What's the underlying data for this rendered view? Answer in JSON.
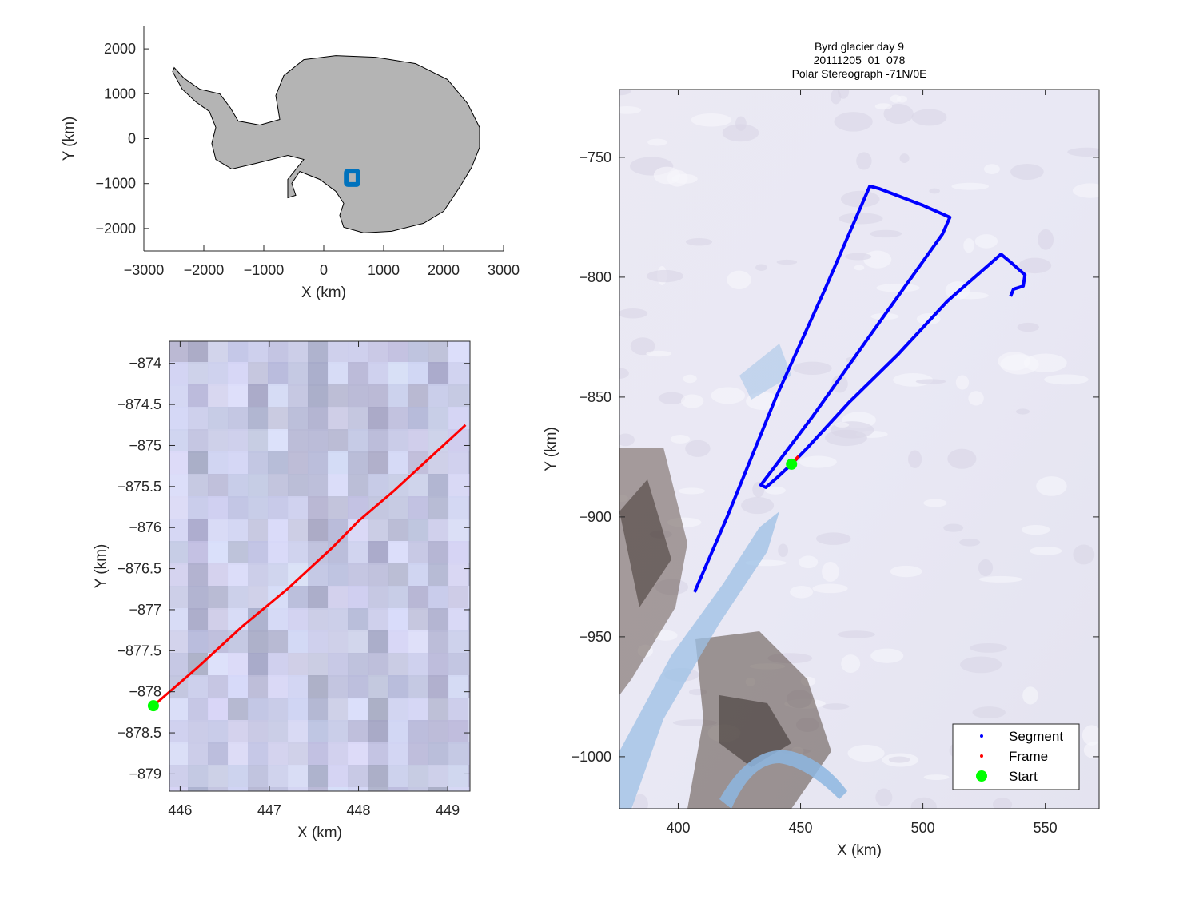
{
  "chart_data": [
    {
      "type": "line",
      "panel": "overview-map",
      "xlabel": "X (km)",
      "ylabel": "Y (km)",
      "xlim": [
        -3000,
        3000
      ],
      "ylim": [
        -2500,
        2500
      ],
      "xticks": [
        -3000,
        -2000,
        -1000,
        0,
        1000,
        2000,
        3000
      ],
      "yticks": [
        -2000,
        -1000,
        0,
        1000,
        2000
      ],
      "box": false,
      "land_color": "#b4b4b4",
      "coastline": [
        [
          -2493,
          1582
        ],
        [
          -2333,
          1351
        ],
        [
          -2067,
          1102
        ],
        [
          -1733,
          996
        ],
        [
          -1560,
          693
        ],
        [
          -1427,
          391
        ],
        [
          -1067,
          302
        ],
        [
          -733,
          427
        ],
        [
          -800,
          960
        ],
        [
          -667,
          1404
        ],
        [
          -333,
          1760
        ],
        [
          200,
          1849
        ],
        [
          867,
          1813
        ],
        [
          1533,
          1671
        ],
        [
          2067,
          1316
        ],
        [
          2400,
          782
        ],
        [
          2600,
          249
        ],
        [
          2600,
          -196
        ],
        [
          2467,
          -640
        ],
        [
          2267,
          -1084
        ],
        [
          2000,
          -1618
        ],
        [
          1667,
          -1884
        ],
        [
          1133,
          -2062
        ],
        [
          667,
          -2098
        ],
        [
          333,
          -1973
        ],
        [
          267,
          -1707
        ],
        [
          333,
          -1440
        ],
        [
          200,
          -1173
        ],
        [
          -67,
          -907
        ],
        [
          -400,
          -729
        ],
        [
          -533,
          -996
        ],
        [
          -467,
          -1262
        ],
        [
          -600,
          -1316
        ],
        [
          -600,
          -907
        ],
        [
          -333,
          -462
        ],
        [
          -600,
          -373
        ],
        [
          -1133,
          -551
        ],
        [
          -1533,
          -676
        ],
        [
          -1800,
          -462
        ],
        [
          -1867,
          -107
        ],
        [
          -1800,
          249
        ],
        [
          -1907,
          604
        ],
        [
          -2133,
          818
        ],
        [
          -2360,
          1102
        ],
        [
          -2520,
          1493
        ]
      ],
      "region_box": {
        "x": [
          376,
          572
        ],
        "y": [
          -1022,
          -722
        ],
        "color": "#0072BD"
      }
    },
    {
      "type": "line",
      "panel": "frame-zoom",
      "xlabel": "X (km)",
      "ylabel": "Y (km)",
      "xlim": [
        445.88,
        449.25
      ],
      "ylim": [
        -879.21,
        -873.73
      ],
      "xticks": [
        446,
        447,
        448,
        449
      ],
      "yticks": [
        -879,
        -878.5,
        -878,
        -877.5,
        -877,
        -876.5,
        -876,
        -875.5,
        -875,
        -874.5,
        -874
      ],
      "frame": {
        "color": "#ff0000",
        "points": [
          [
            445.7,
            -878.17
          ],
          [
            446.2,
            -877.7
          ],
          [
            446.7,
            -877.2
          ],
          [
            447.2,
            -876.75
          ],
          [
            447.7,
            -876.25
          ],
          [
            448.0,
            -875.92
          ],
          [
            448.4,
            -875.55
          ],
          [
            448.8,
            -875.15
          ],
          [
            449.2,
            -874.75
          ]
        ]
      },
      "start": {
        "color": "#00ff00",
        "point": [
          445.7,
          -878.17
        ]
      }
    },
    {
      "type": "line",
      "panel": "segment-map",
      "title": [
        "Byrd glacier day 9",
        "20111205_01_078",
        "Polar Stereograph -71N/0E"
      ],
      "xlabel": "X (km)",
      "ylabel": "Y (km)",
      "xlim": [
        376,
        572
      ],
      "ylim": [
        -1021.7,
        -721.7
      ],
      "xticks": [
        400,
        450,
        500,
        550
      ],
      "yticks": [
        -1000,
        -950,
        -900,
        -850,
        -800,
        -750
      ],
      "segment": {
        "color": "#0000ff",
        "points": [
          [
            406.7,
            -931.3
          ],
          [
            420,
            -900
          ],
          [
            440,
            -850
          ],
          [
            460,
            -805
          ],
          [
            478.3,
            -762
          ],
          [
            482,
            -763
          ],
          [
            500,
            -770
          ],
          [
            511,
            -775
          ],
          [
            508,
            -782
          ],
          [
            480,
            -822
          ],
          [
            455,
            -858
          ],
          [
            433.8,
            -886.7
          ],
          [
            435.8,
            -887.7
          ],
          [
            440,
            -884
          ],
          [
            446.3,
            -878
          ],
          [
            452,
            -872
          ],
          [
            470,
            -852
          ],
          [
            490,
            -832
          ],
          [
            510,
            -810
          ],
          [
            531.9,
            -790.4
          ],
          [
            535.8,
            -793.7
          ],
          [
            541.7,
            -799
          ],
          [
            541,
            -803.7
          ],
          [
            537,
            -805
          ],
          [
            535.8,
            -808
          ]
        ]
      },
      "frame": {
        "color": "#ff0000",
        "points": [
          [
            446.3,
            -878
          ],
          [
            449.2,
            -874.75
          ]
        ]
      },
      "start": {
        "color": "#00ff00",
        "point": [
          446.3,
          -878
        ]
      },
      "legend": {
        "placement": "bottom-right",
        "entries": [
          "Segment",
          "Frame",
          "Start"
        ]
      }
    }
  ]
}
